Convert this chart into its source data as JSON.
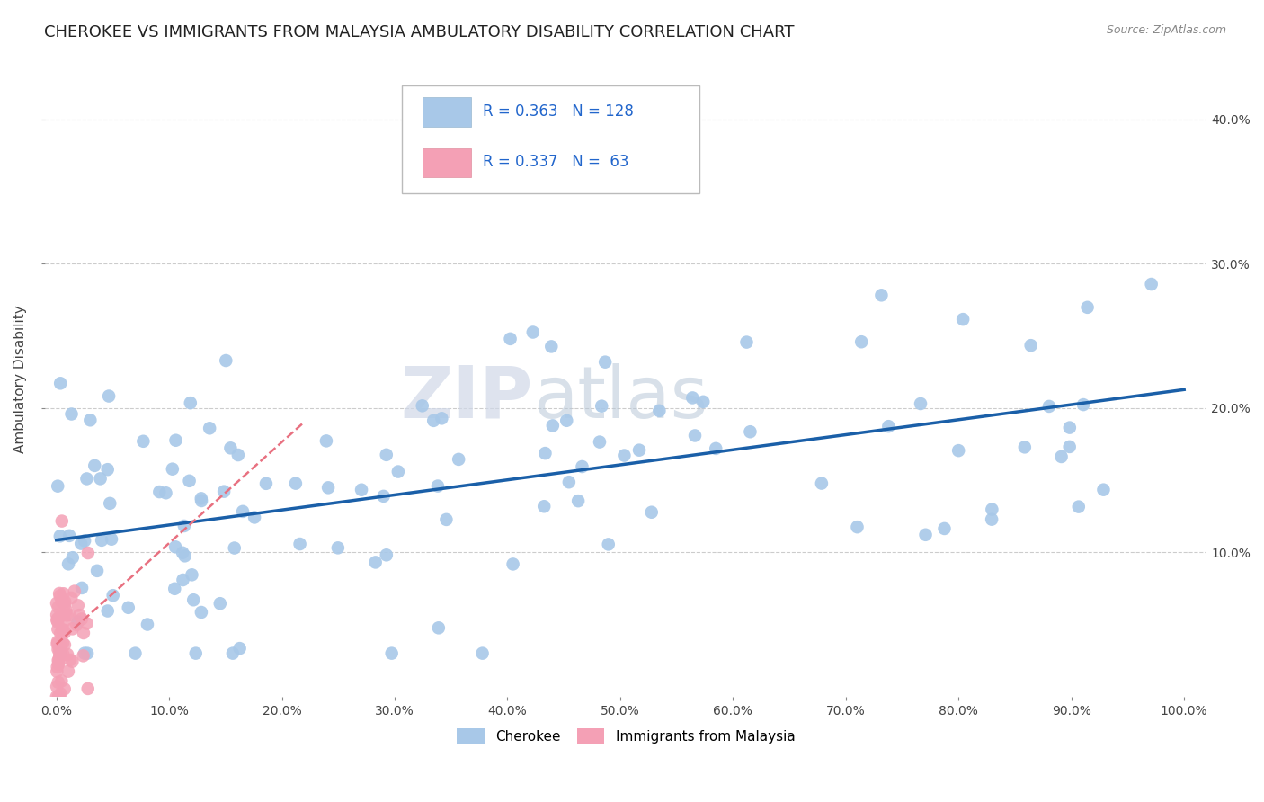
{
  "title": "CHEROKEE VS IMMIGRANTS FROM MALAYSIA AMBULATORY DISABILITY CORRELATION CHART",
  "source": "Source: ZipAtlas.com",
  "ylabel": "Ambulatory Disability",
  "xlim": [
    0.0,
    1.0
  ],
  "ylim": [
    0.0,
    0.44
  ],
  "xticks": [
    0.0,
    0.1,
    0.2,
    0.3,
    0.4,
    0.5,
    0.6,
    0.7,
    0.8,
    0.9,
    1.0
  ],
  "xticklabels": [
    "0.0%",
    "10.0%",
    "20.0%",
    "30.0%",
    "40.0%",
    "50.0%",
    "60.0%",
    "70.0%",
    "80.0%",
    "90.0%",
    "100.0%"
  ],
  "yticks": [
    0.1,
    0.2,
    0.3,
    0.4
  ],
  "yticklabels": [
    "10.0%",
    "20.0%",
    "30.0%",
    "40.0%"
  ],
  "cherokee_color": "#a8c8e8",
  "malaysia_color": "#f4a0b5",
  "cherokee_line_color": "#1a5fa8",
  "malaysia_line_color": "#e87080",
  "legend_R1": "0.363",
  "legend_N1": "128",
  "legend_R2": "0.337",
  "legend_N2": "63",
  "watermark_zip": "ZIP",
  "watermark_atlas": "atlas",
  "background_color": "#ffffff",
  "grid_color": "#cccccc",
  "title_fontsize": 13,
  "axis_fontsize": 11,
  "tick_fontsize": 10
}
